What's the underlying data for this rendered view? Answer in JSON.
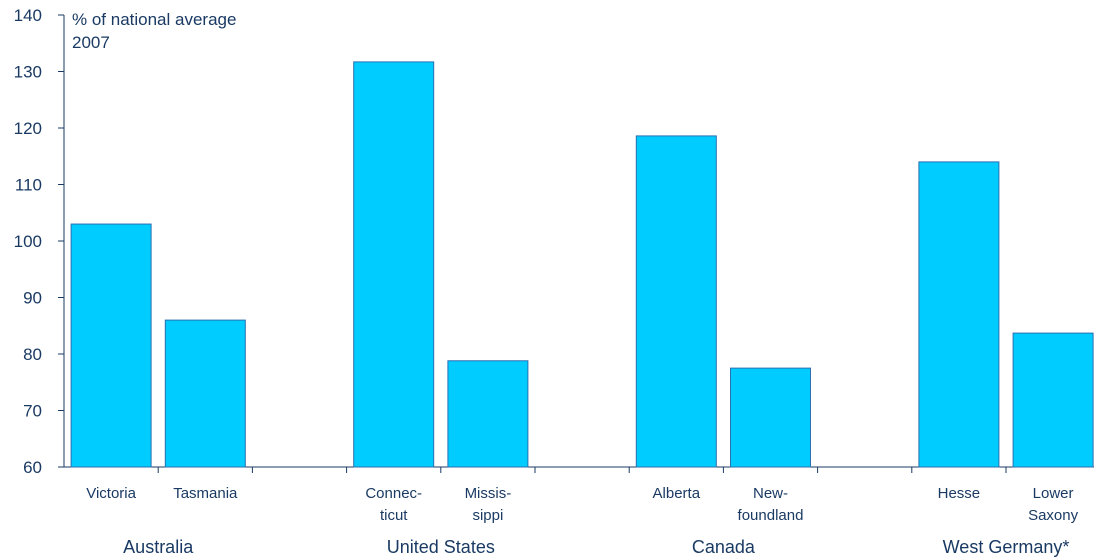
{
  "chart_data": {
    "type": "bar",
    "ylabel": "% of national average",
    "subtitle": "2007",
    "ylim": [
      60,
      140
    ],
    "yticks": [
      60,
      70,
      80,
      90,
      100,
      110,
      120,
      130,
      140
    ],
    "bar_color": "#00CCFF",
    "bar_edge_color": "#2A6FB0",
    "text_color": "#1A3A63",
    "grid": false,
    "groups": [
      {
        "name": "Australia",
        "categories": [
          [
            "Victoria"
          ],
          [
            "Tasmania"
          ]
        ],
        "values": [
          103,
          86
        ]
      },
      {
        "name": "United States",
        "categories": [
          [
            "Connec-",
            "ticut"
          ],
          [
            "Missis-",
            "sippi"
          ]
        ],
        "values": [
          131.7,
          78.8
        ]
      },
      {
        "name": "Canada",
        "categories": [
          [
            "Alberta"
          ],
          [
            "New-",
            "foundland"
          ]
        ],
        "values": [
          118.6,
          77.5
        ]
      },
      {
        "name": "West Germany*",
        "categories": [
          [
            "Hesse"
          ],
          [
            "Lower",
            "Saxony"
          ]
        ],
        "values": [
          114,
          83.7
        ]
      }
    ]
  }
}
